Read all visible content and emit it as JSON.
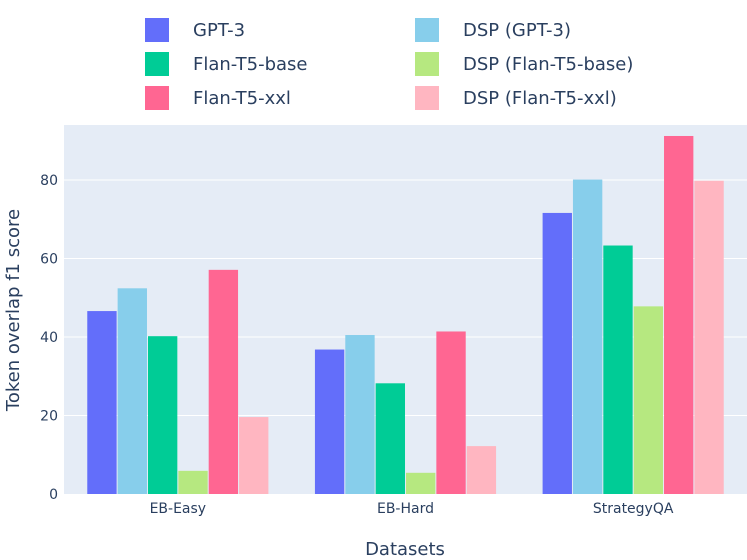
{
  "chart_data": {
    "type": "bar",
    "title": "",
    "xlabel": "Datasets",
    "ylabel": "Token overlap f1 score",
    "ylim": [
      0,
      94
    ],
    "yticks": [
      0,
      20,
      40,
      60,
      80
    ],
    "grid": true,
    "legend_position": "top",
    "categories": [
      "EB-Easy",
      "EB-Hard",
      "StrategyQA"
    ],
    "series": [
      {
        "name": "GPT-3",
        "color": "#636efa",
        "values": [
          46.6,
          36.8,
          71.6
        ]
      },
      {
        "name": "DSP (GPT-3)",
        "color": "#87ceeb",
        "values": [
          52.4,
          40.5,
          80.1
        ]
      },
      {
        "name": "Flan-T5-base",
        "color": "#00cc96",
        "values": [
          40.2,
          28.2,
          63.3
        ]
      },
      {
        "name": "DSP (Flan-T5-base)",
        "color": "#b6e880",
        "values": [
          5.9,
          5.4,
          47.8
        ]
      },
      {
        "name": "Flan-T5-xxl",
        "color": "#ff6692",
        "values": [
          57.1,
          41.4,
          91.2
        ]
      },
      {
        "name": "DSP (Flan-T5-xxl)",
        "color": "#ffb6c1",
        "values": [
          19.6,
          12.2,
          79.8
        ]
      }
    ]
  }
}
